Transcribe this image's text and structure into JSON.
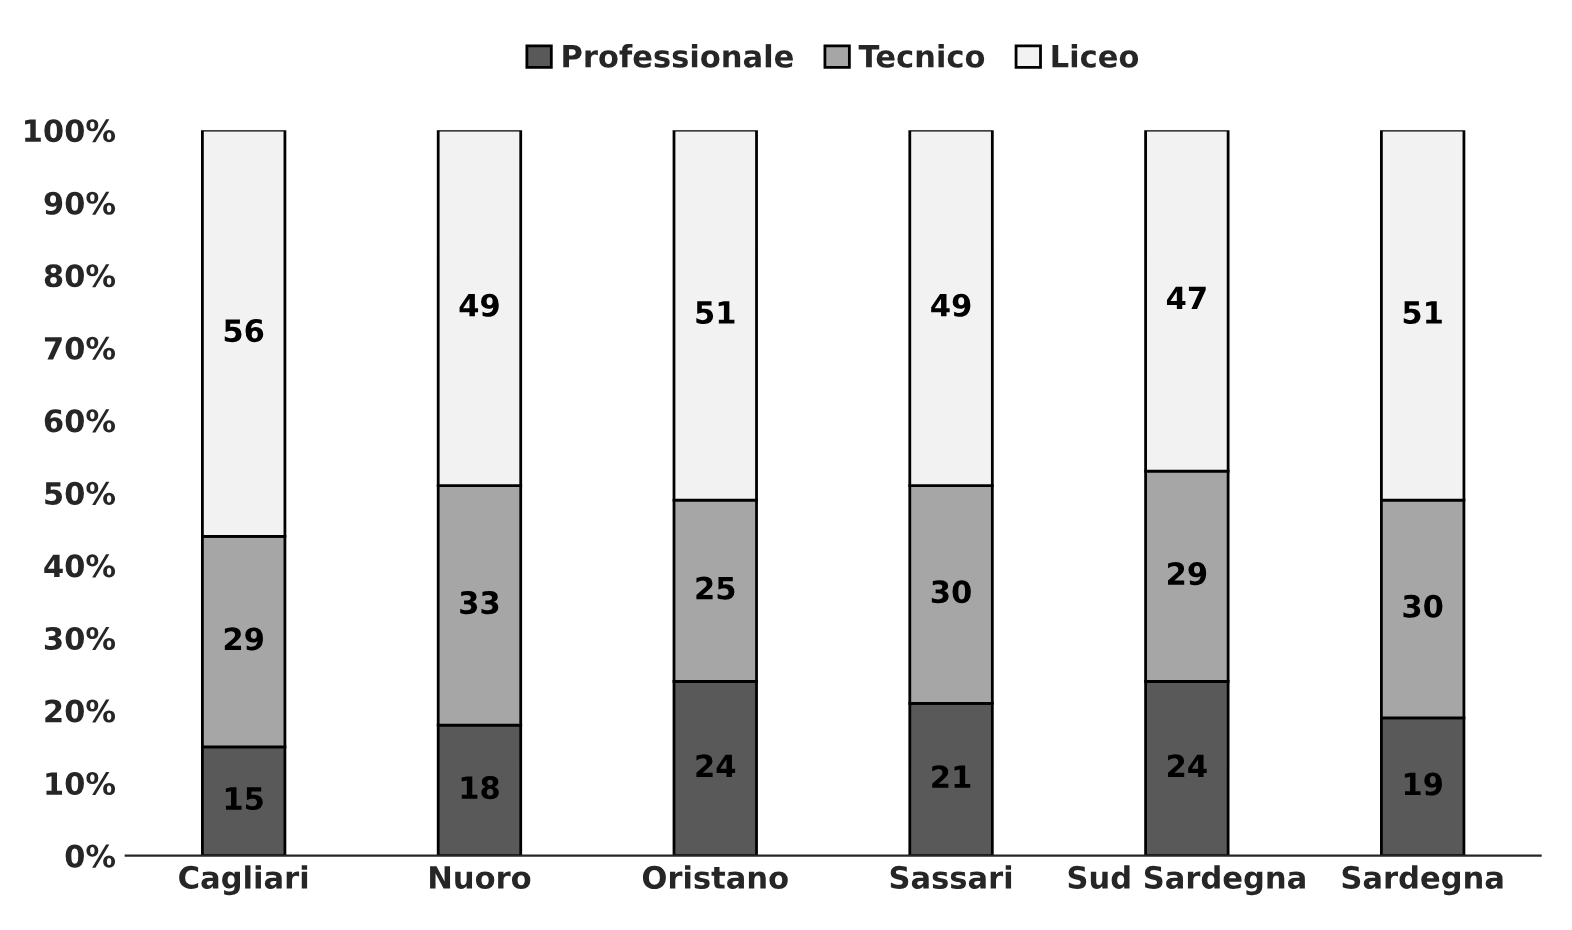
{
  "chart_data": {
    "type": "bar",
    "stacked": true,
    "categories": [
      "Cagliari",
      "Nuoro",
      "Oristano",
      "Sassari",
      "Sud Sardegna",
      "Sardegna"
    ],
    "series": [
      {
        "name": "Professionale",
        "color": "#595959",
        "values": [
          15,
          18,
          24,
          21,
          24,
          19
        ]
      },
      {
        "name": "Tecnico",
        "color": "#a6a6a6",
        "values": [
          29,
          33,
          25,
          30,
          29,
          30
        ]
      },
      {
        "name": "Liceo",
        "color": "#f2f2f2",
        "values": [
          56,
          49,
          51,
          49,
          47,
          51
        ]
      }
    ],
    "ylim": [
      0,
      100
    ],
    "yticks": [
      {
        "value": 0,
        "label": "0%"
      },
      {
        "value": 10,
        "label": "10%"
      },
      {
        "value": 20,
        "label": "20%"
      },
      {
        "value": 30,
        "label": "30%"
      },
      {
        "value": 40,
        "label": "40%"
      },
      {
        "value": 50,
        "label": "50%"
      },
      {
        "value": 60,
        "label": "60%"
      },
      {
        "value": 70,
        "label": "70%"
      },
      {
        "value": 80,
        "label": "80%"
      },
      {
        "value": 90,
        "label": "90%"
      },
      {
        "value": 100,
        "label": "100%"
      }
    ],
    "data_labels": true,
    "legend": "top",
    "grid": false
  }
}
